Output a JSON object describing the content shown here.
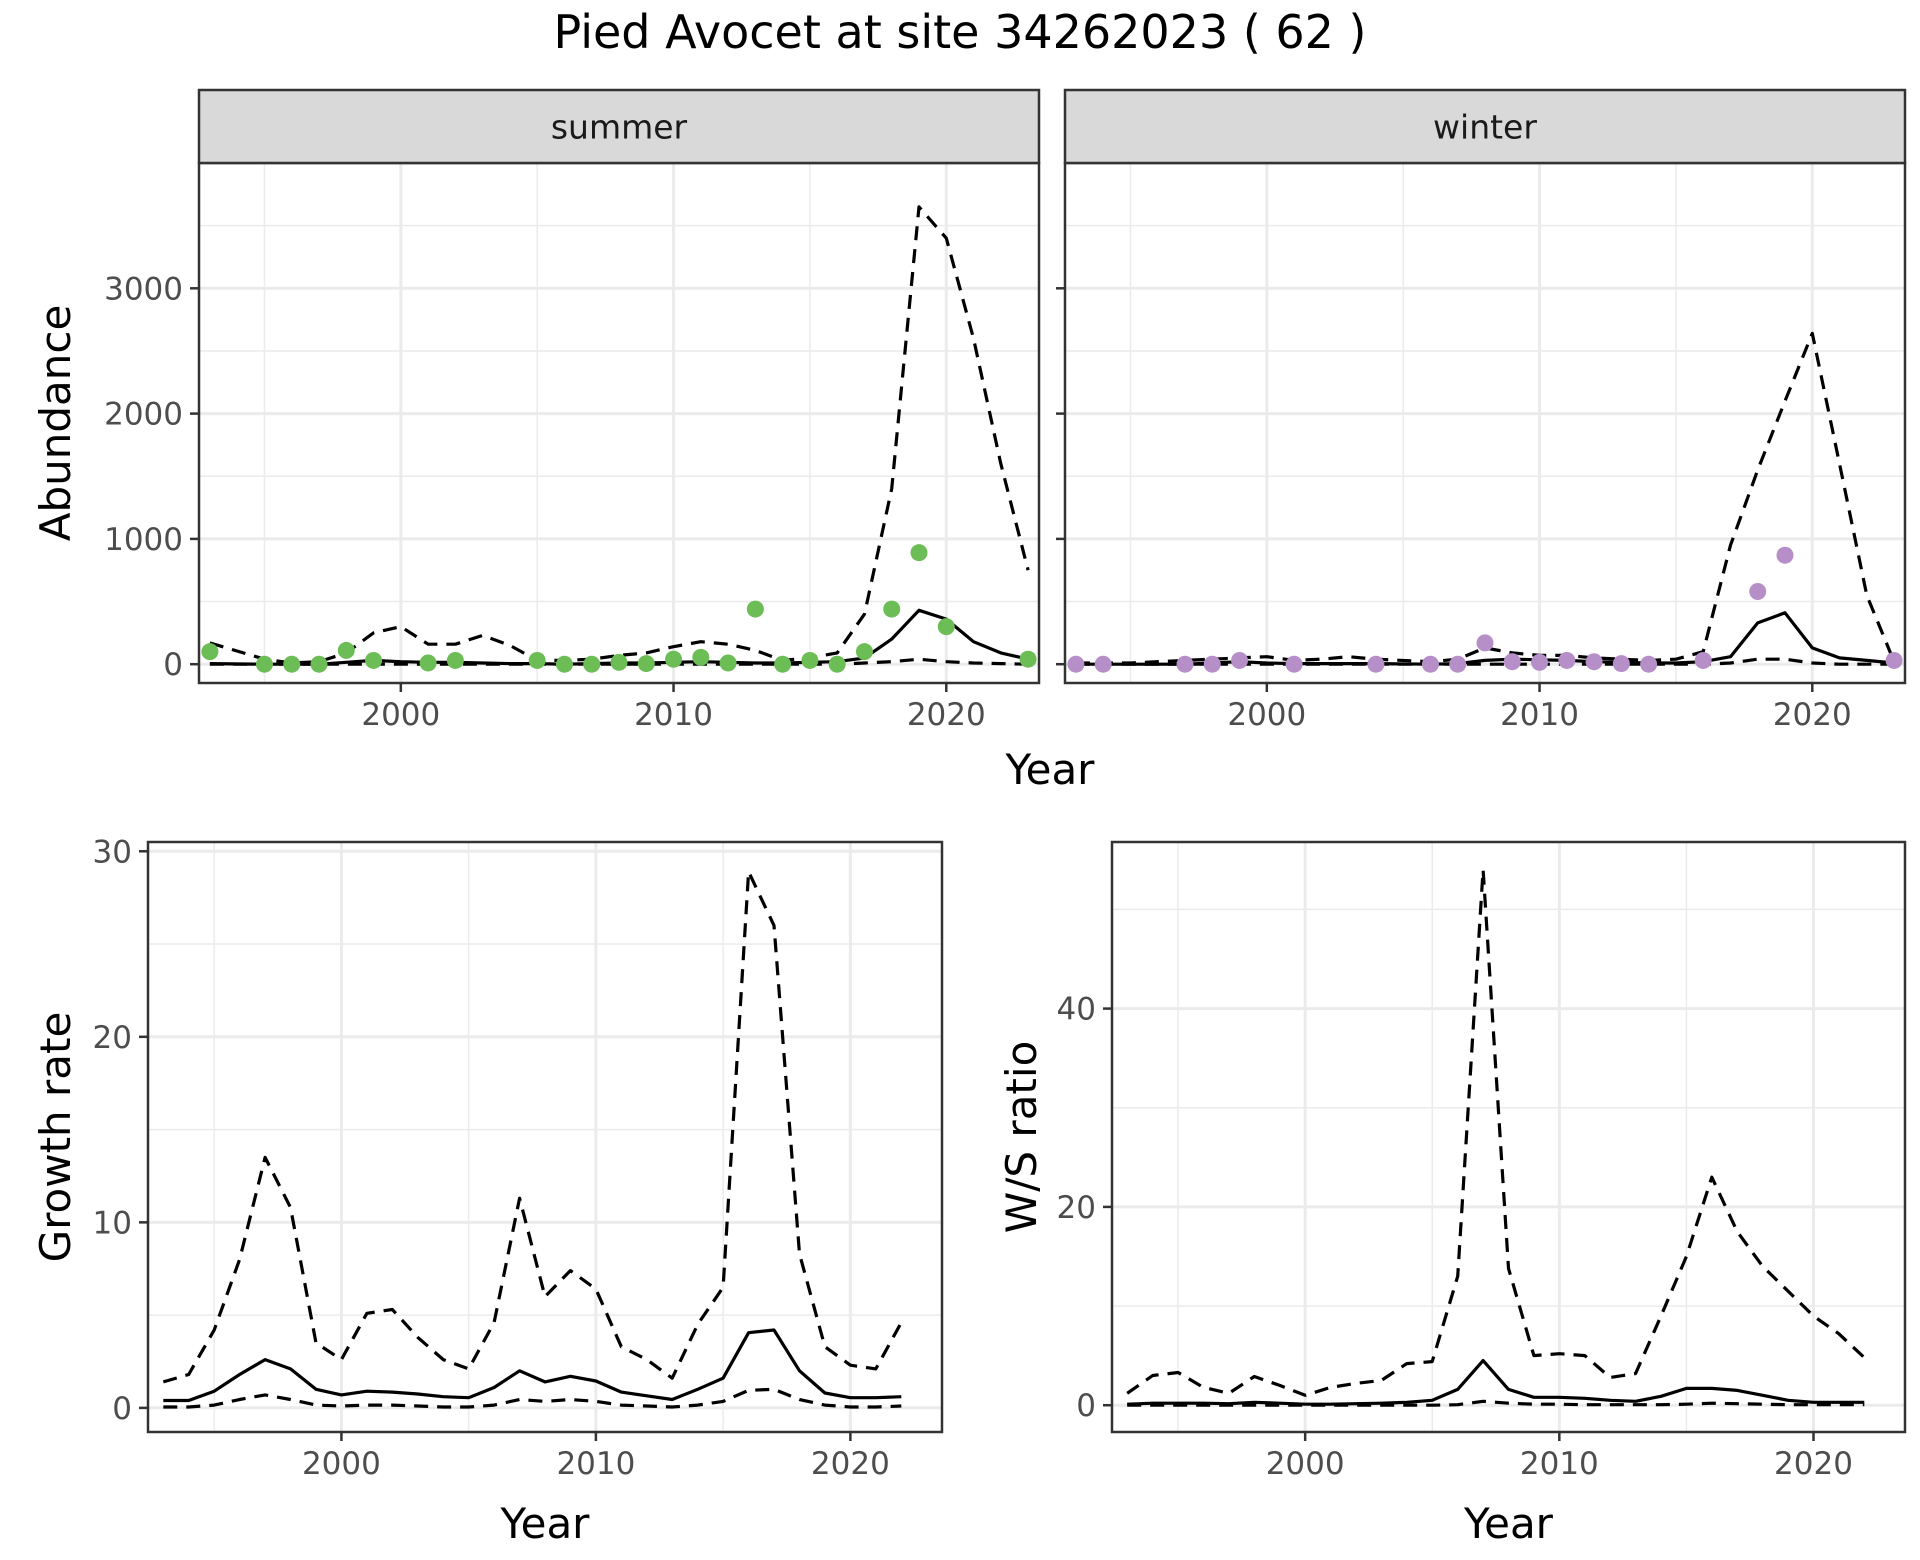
{
  "title": "Pied Avocet at site 34262023 ( 62 )",
  "chart_data": [
    {
      "id": "summer",
      "type": "line",
      "strip": "summer",
      "ylabel": "Abundance",
      "xlabel": "",
      "xlim": [
        1992.6,
        2023.4
      ],
      "ylim": [
        -150,
        4000
      ],
      "xticks": [
        2000,
        2010,
        2020
      ],
      "yticks": [
        0,
        1000,
        2000,
        3000
      ],
      "grid": true,
      "point_color": "#6dbd57",
      "lines": {
        "x": [
          1993,
          1995,
          1996,
          1997,
          1998,
          1999,
          2000,
          2001,
          2002,
          2003,
          2004,
          2005,
          2006,
          2007,
          2008,
          2009,
          2010,
          2011,
          2012,
          2013,
          2014,
          2015,
          2016,
          2017,
          2018,
          2019,
          2020,
          2021,
          2022,
          2023
        ],
        "median": [
          5,
          0,
          0,
          0,
          15,
          30,
          20,
          15,
          15,
          10,
          5,
          5,
          0,
          5,
          10,
          10,
          15,
          20,
          15,
          10,
          10,
          15,
          20,
          50,
          200,
          430,
          360,
          180,
          90,
          40
        ],
        "lower": [
          0,
          0,
          0,
          0,
          0,
          0,
          0,
          0,
          0,
          0,
          0,
          0,
          0,
          0,
          0,
          0,
          0,
          0,
          0,
          0,
          0,
          0,
          0,
          10,
          20,
          40,
          20,
          10,
          5,
          0
        ],
        "upper": [
          170,
          40,
          10,
          20,
          90,
          250,
          300,
          160,
          160,
          230,
          150,
          30,
          30,
          40,
          70,
          90,
          140,
          180,
          160,
          110,
          30,
          50,
          90,
          400,
          1400,
          3650,
          3400,
          2600,
          1600,
          750
        ]
      },
      "points": {
        "x": [
          1993,
          1995,
          1996,
          1997,
          1998,
          1999,
          2001,
          2002,
          2005,
          2006,
          2007,
          2008,
          2009,
          2010,
          2011,
          2012,
          2013,
          2014,
          2015,
          2016,
          2017,
          2018,
          2019,
          2020,
          2023
        ],
        "y": [
          100,
          0,
          0,
          0,
          110,
          30,
          10,
          30,
          30,
          0,
          0,
          15,
          5,
          40,
          55,
          10,
          440,
          0,
          30,
          0,
          100,
          440,
          890,
          300,
          40
        ]
      }
    },
    {
      "id": "winter",
      "type": "line",
      "strip": "winter",
      "ylabel": "",
      "xlabel": "",
      "xlim": [
        1992.6,
        2023.4
      ],
      "ylim": [
        -150,
        4000
      ],
      "xticks": [
        2000,
        2010,
        2020
      ],
      "yticks": [
        0,
        1000,
        2000,
        3000
      ],
      "grid": true,
      "point_color": "#b68fc9",
      "lines": {
        "x": [
          1993,
          1995,
          1997,
          1999,
          2000,
          2001,
          2002,
          2003,
          2004,
          2006,
          2007,
          2008,
          2009,
          2010,
          2011,
          2012,
          2013,
          2014,
          2015,
          2016,
          2017,
          2018,
          2019,
          2020,
          2021,
          2022,
          2023
        ],
        "median": [
          0,
          0,
          0,
          20,
          10,
          5,
          5,
          5,
          5,
          0,
          5,
          30,
          40,
          35,
          30,
          20,
          15,
          10,
          10,
          20,
          60,
          330,
          410,
          130,
          50,
          30,
          10
        ],
        "lower": [
          0,
          0,
          0,
          0,
          0,
          0,
          0,
          0,
          0,
          0,
          0,
          0,
          0,
          0,
          0,
          0,
          0,
          0,
          0,
          0,
          10,
          40,
          40,
          10,
          0,
          0,
          0
        ],
        "upper": [
          10,
          10,
          30,
          50,
          60,
          30,
          40,
          60,
          40,
          20,
          40,
          130,
          90,
          70,
          70,
          50,
          40,
          30,
          40,
          100,
          950,
          1550,
          2100,
          2640,
          1600,
          550,
          20
        ]
      },
      "points": {
        "x": [
          1993,
          1994,
          1997,
          1998,
          1999,
          2001,
          2004,
          2006,
          2007,
          2008,
          2009,
          2010,
          2011,
          2012,
          2013,
          2014,
          2016,
          2018,
          2019,
          2023
        ],
        "y": [
          0,
          0,
          0,
          0,
          30,
          0,
          0,
          0,
          0,
          170,
          20,
          15,
          30,
          20,
          5,
          0,
          30,
          580,
          870,
          30
        ]
      }
    },
    {
      "id": "growth",
      "type": "line",
      "ylabel": "Growth rate",
      "xlabel": "Year",
      "xlim": [
        1992.4,
        2023.6
      ],
      "ylim": [
        -1.3,
        30.5
      ],
      "xticks": [
        2000,
        2010,
        2020
      ],
      "yticks": [
        0,
        10,
        20,
        30
      ],
      "grid": true,
      "lines": {
        "x": [
          1993,
          1994,
          1995,
          1996,
          1997,
          1998,
          1999,
          2000,
          2001,
          2002,
          2003,
          2004,
          2005,
          2006,
          2007,
          2008,
          2009,
          2010,
          2011,
          2012,
          2013,
          2014,
          2015,
          2016,
          2017,
          2018,
          2019,
          2020,
          2021,
          2022
        ],
        "median": [
          0.4,
          0.4,
          0.9,
          1.8,
          2.6,
          2.1,
          1.0,
          0.7,
          0.9,
          0.85,
          0.75,
          0.6,
          0.55,
          1.1,
          2.0,
          1.4,
          1.7,
          1.45,
          0.85,
          0.65,
          0.45,
          1.0,
          1.6,
          4.05,
          4.2,
          2.0,
          0.8,
          0.55,
          0.55,
          0.6
        ],
        "lower": [
          0.05,
          0.05,
          0.15,
          0.45,
          0.7,
          0.45,
          0.15,
          0.1,
          0.15,
          0.15,
          0.1,
          0.05,
          0.05,
          0.15,
          0.45,
          0.35,
          0.45,
          0.35,
          0.15,
          0.1,
          0.05,
          0.15,
          0.35,
          0.95,
          1.0,
          0.45,
          0.15,
          0.05,
          0.05,
          0.1
        ],
        "upper": [
          1.4,
          1.8,
          4.2,
          8.0,
          13.5,
          10.8,
          3.5,
          2.6,
          5.1,
          5.3,
          3.8,
          2.6,
          2.1,
          4.6,
          11.3,
          6.0,
          7.4,
          6.4,
          3.3,
          2.6,
          1.6,
          4.5,
          6.5,
          28.9,
          26.0,
          8.3,
          3.3,
          2.3,
          2.1,
          4.6
        ]
      }
    },
    {
      "id": "ratio",
      "type": "line",
      "ylabel": "W/S ratio",
      "xlabel": "Year",
      "xlim": [
        1992.4,
        2023.6
      ],
      "ylim": [
        -2.7,
        56.8
      ],
      "xticks": [
        2000,
        2010,
        2020
      ],
      "yticks": [
        0,
        20,
        40
      ],
      "grid": true,
      "lines": {
        "x": [
          1993,
          1994,
          1995,
          1996,
          1997,
          1998,
          1999,
          2000,
          2001,
          2002,
          2003,
          2004,
          2005,
          2006,
          2007,
          2008,
          2009,
          2010,
          2011,
          2012,
          2013,
          2014,
          2015,
          2016,
          2017,
          2018,
          2019,
          2020,
          2021,
          2022
        ],
        "median": [
          0.1,
          0.2,
          0.2,
          0.2,
          0.15,
          0.3,
          0.2,
          0.1,
          0.1,
          0.15,
          0.2,
          0.3,
          0.5,
          1.6,
          4.5,
          1.6,
          0.8,
          0.8,
          0.7,
          0.5,
          0.4,
          0.9,
          1.7,
          1.7,
          1.5,
          1.0,
          0.5,
          0.3,
          0.3,
          0.3
        ],
        "lower": [
          0,
          0,
          0,
          0,
          0,
          0,
          0,
          0,
          0,
          0,
          0,
          0,
          0,
          0.05,
          0.4,
          0.2,
          0.1,
          0.1,
          0.05,
          0.05,
          0.05,
          0.05,
          0.1,
          0.2,
          0.15,
          0.1,
          0.05,
          0.05,
          0.05,
          0.05
        ],
        "upper": [
          1.2,
          3.0,
          3.3,
          1.8,
          1.2,
          2.9,
          2.0,
          1.0,
          1.8,
          2.2,
          2.5,
          4.2,
          4.4,
          13.0,
          54.0,
          13.8,
          5.0,
          5.2,
          5.0,
          2.8,
          3.2,
          9.0,
          15.0,
          23.0,
          17.5,
          14.0,
          11.5,
          9.0,
          7.2,
          4.8
        ]
      }
    }
  ]
}
